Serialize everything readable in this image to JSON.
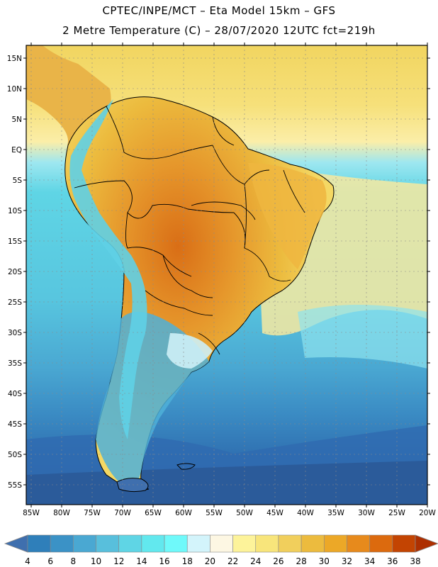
{
  "header": {
    "line1": "CPTEC/INPE/MCT –  Eta Model 15km – GFS",
    "line2": "2 Metre Temperature (C) – 28/07/2020 12UTC fct=219h"
  },
  "axes": {
    "lat_labels": [
      "15N",
      "10N",
      "5N",
      "EQ",
      "5S",
      "10S",
      "15S",
      "20S",
      "25S",
      "30S",
      "35S",
      "40S",
      "45S",
      "50S",
      "55S"
    ],
    "lon_labels": [
      "85W",
      "80W",
      "75W",
      "70W",
      "65W",
      "60W",
      "55W",
      "50W",
      "45W",
      "40W",
      "35W",
      "30W",
      "25W",
      "20W"
    ]
  },
  "colorbar": {
    "values": [
      "4",
      "6",
      "8",
      "10",
      "12",
      "14",
      "16",
      "18",
      "20",
      "22",
      "24",
      "26",
      "28",
      "30",
      "32",
      "34",
      "36",
      "38"
    ],
    "colors": [
      "#3f6fae",
      "#2f7fba",
      "#3b92c6",
      "#4aa8d2",
      "#58bfdc",
      "#5fd5e5",
      "#62e8ee",
      "#6ff9fa",
      "#d3f4fb",
      "#fdf7e3",
      "#fdf39a",
      "#f8e57b",
      "#f1cf5c",
      "#ecbb3e",
      "#eca827",
      "#e78a1c",
      "#dc6a0e",
      "#c34402",
      "#ad2f00"
    ]
  },
  "map_colors": {
    "ocean_cold": "#2b5e9e",
    "ocean_cool": "#3a80bf",
    "ocean_mid": "#4fb3d9",
    "ocean_warm": "#62e6ee",
    "ocean_tropic": "#f3dc6e",
    "land_warm": "#eab640",
    "land_hot": "#e28f22",
    "land_hottest": "#cf6a16",
    "andes": "#6ad8ec",
    "border": "#000000",
    "grid": "#8a8a8a"
  }
}
